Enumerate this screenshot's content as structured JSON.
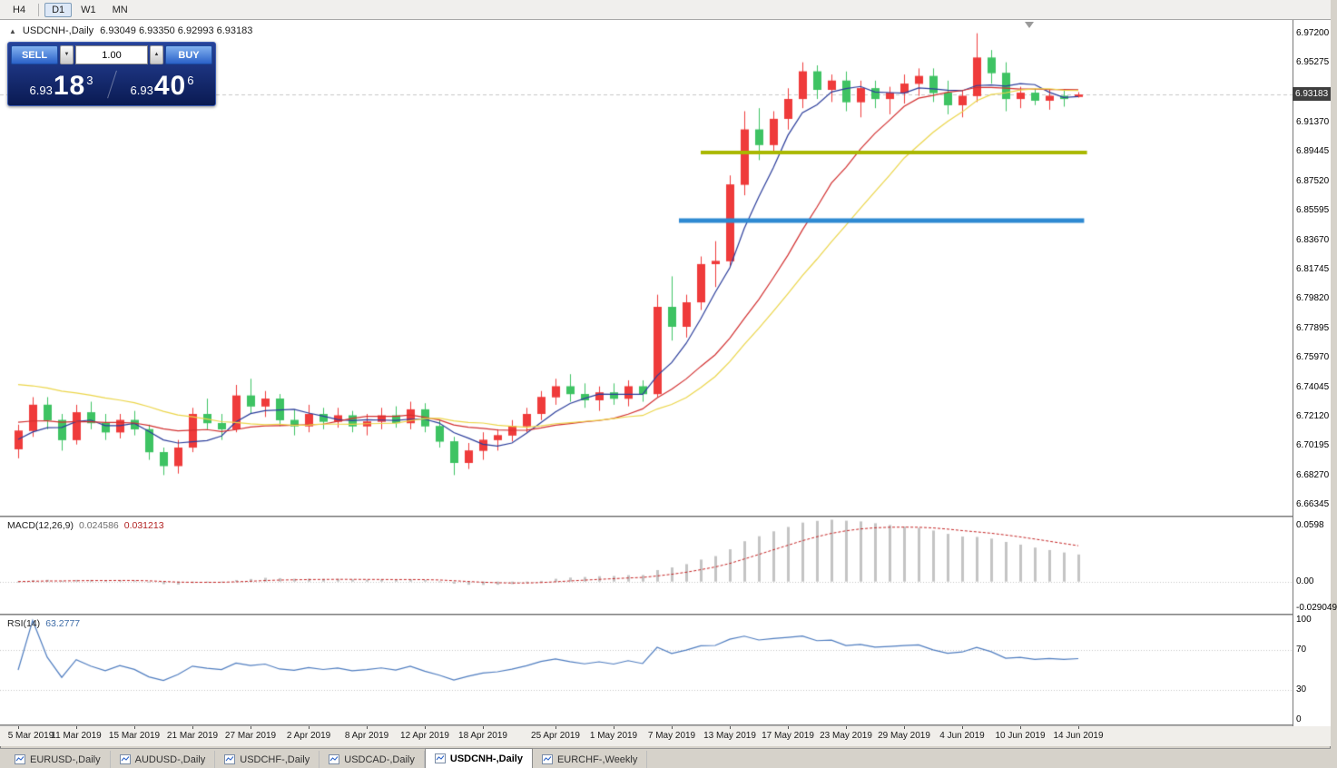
{
  "timeframe_toolbar": {
    "buttons": [
      "H4",
      "D1",
      "W1",
      "MN"
    ],
    "active": "D1"
  },
  "chart_header": {
    "collapse_icon": "▲",
    "title": "USDCNH-,Daily",
    "ohlc": "6.93049 6.93350 6.92993 6.93183"
  },
  "one_click_panel": {
    "sell_label": "SELL",
    "buy_label": "BUY",
    "volume": "1.00",
    "spin_down_icon": "▼",
    "spin_up_icon": "▲",
    "sell_price_main": "6.93",
    "sell_price_big": "18",
    "sell_price_sup": "3",
    "buy_price_main": "6.93",
    "buy_price_big": "40",
    "buy_price_sup": "6"
  },
  "price_axis": {
    "labels": [
      "6.97200",
      "6.95275",
      "6.91370",
      "6.89445",
      "6.87520",
      "6.85595",
      "6.83670",
      "6.81745",
      "6.79820",
      "6.77895",
      "6.75970",
      "6.74045",
      "6.72120",
      "6.70195",
      "6.68270",
      "6.66345"
    ],
    "current_price": "6.93183"
  },
  "macd_panel": {
    "label_name": "MACD(12,26,9)",
    "value_main": "0.024586",
    "value_signal": "0.031213",
    "axis_labels": [
      "0.0598",
      "0.00",
      "-0.029049"
    ]
  },
  "rsi_panel": {
    "label_name": "RSI(14)",
    "value": "63.2777",
    "axis_labels": [
      "100",
      "70",
      "30",
      "0"
    ]
  },
  "date_axis": {
    "labels": [
      [
        "5 Mar 2019",
        0
      ],
      [
        "11 Mar 2019",
        4
      ],
      [
        "15 Mar 2019",
        8
      ],
      [
        "21 Mar 2019",
        12
      ],
      [
        "27 Mar 2019",
        16
      ],
      [
        "2 Apr 2019",
        20
      ],
      [
        "8 Apr 2019",
        24
      ],
      [
        "12 Apr 2019",
        28
      ],
      [
        "18 Apr 2019",
        32
      ],
      [
        "25 Apr 2019",
        37
      ],
      [
        "1 May 2019",
        41
      ],
      [
        "7 May 2019",
        45
      ],
      [
        "13 May 2019",
        49
      ],
      [
        "17 May 2019",
        53
      ],
      [
        "23 May 2019",
        57
      ],
      [
        "29 May 2019",
        61
      ],
      [
        "4 Jun 2019",
        65
      ],
      [
        "10 Jun 2019",
        69
      ],
      [
        "14 Jun 2019",
        73
      ]
    ]
  },
  "tab_bar": {
    "tabs": [
      {
        "label": "EURUSD-,Daily",
        "active": false
      },
      {
        "label": "AUDUSD-,Daily",
        "active": false
      },
      {
        "label": "USDCHF-,Daily",
        "active": false
      },
      {
        "label": "USDCAD-,Daily",
        "active": false
      },
      {
        "label": "USDCNH-,Daily",
        "active": true
      },
      {
        "label": "EURCHF-,Weekly",
        "active": false
      }
    ]
  },
  "colors": {
    "bull": "#ef3b3b",
    "bear": "#3ec363",
    "ma_fast": "#2c3e9c",
    "ma_mid": "#d33030",
    "ma_slow": "#ecd64a",
    "macd_hist": "#c4c4c4",
    "macd_signal": "#c62626",
    "rsi_line": "#4f7dc0",
    "level_dotted": "#c6c6c6",
    "hline_olive": "#a9b800",
    "hline_blue": "#2f8ad2",
    "badge_bg": "#3f3f3f",
    "bid_line": "#c8c8c8"
  },
  "chart_data": {
    "type": "candlestick",
    "symbol": "USDCNH",
    "period": "Daily",
    "price_range": {
      "max": 6.9795,
      "min": 6.6565
    },
    "candles": [
      [
        6.7,
        6.716,
        6.694,
        6.712
      ],
      [
        6.712,
        6.734,
        6.708,
        6.729
      ],
      [
        6.729,
        6.734,
        6.713,
        6.719
      ],
      [
        6.719,
        6.723,
        6.699,
        6.706
      ],
      [
        6.706,
        6.729,
        6.703,
        6.724
      ],
      [
        6.724,
        6.731,
        6.713,
        6.717
      ],
      [
        6.717,
        6.723,
        6.706,
        6.711
      ],
      [
        6.711,
        6.723,
        6.707,
        6.719
      ],
      [
        6.719,
        6.725,
        6.709,
        6.713
      ],
      [
        6.713,
        6.716,
        6.693,
        6.698
      ],
      [
        6.698,
        6.701,
        6.683,
        6.689
      ],
      [
        6.689,
        6.706,
        6.684,
        6.701
      ],
      [
        6.701,
        6.727,
        6.698,
        6.723
      ],
      [
        6.723,
        6.733,
        6.713,
        6.717
      ],
      [
        6.717,
        6.723,
        6.706,
        6.713
      ],
      [
        6.713,
        6.742,
        6.711,
        6.735
      ],
      [
        6.735,
        6.746,
        6.723,
        6.728
      ],
      [
        6.728,
        6.738,
        6.721,
        6.733
      ],
      [
        6.733,
        6.736,
        6.715,
        6.719
      ],
      [
        6.719,
        6.726,
        6.709,
        6.715
      ],
      [
        6.715,
        6.729,
        6.711,
        6.723
      ],
      [
        6.723,
        6.727,
        6.713,
        6.718
      ],
      [
        6.718,
        6.727,
        6.714,
        6.722
      ],
      [
        6.722,
        6.725,
        6.711,
        6.715
      ],
      [
        6.715,
        6.723,
        6.709,
        6.718
      ],
      [
        6.718,
        6.727,
        6.713,
        6.722
      ],
      [
        6.722,
        6.728,
        6.714,
        6.717
      ],
      [
        6.717,
        6.731,
        6.713,
        6.726
      ],
      [
        6.726,
        6.73,
        6.711,
        6.715
      ],
      [
        6.715,
        6.719,
        6.701,
        6.705
      ],
      [
        6.705,
        6.708,
        6.683,
        6.691
      ],
      [
        6.691,
        6.704,
        6.687,
        6.699
      ],
      [
        6.699,
        6.711,
        6.693,
        6.706
      ],
      [
        6.706,
        6.713,
        6.699,
        6.709
      ],
      [
        6.709,
        6.719,
        6.705,
        6.715
      ],
      [
        6.715,
        6.727,
        6.711,
        6.723
      ],
      [
        6.723,
        6.738,
        6.719,
        6.734
      ],
      [
        6.734,
        6.746,
        6.729,
        6.741
      ],
      [
        6.741,
        6.749,
        6.731,
        6.736
      ],
      [
        6.736,
        6.743,
        6.727,
        6.732
      ],
      [
        6.732,
        6.741,
        6.725,
        6.737
      ],
      [
        6.737,
        6.743,
        6.729,
        6.733
      ],
      [
        6.733,
        6.745,
        6.728,
        6.741
      ],
      [
        6.741,
        6.745,
        6.731,
        6.736
      ],
      [
        6.736,
        6.801,
        6.734,
        6.793
      ],
      [
        6.793,
        6.813,
        6.771,
        6.78
      ],
      [
        6.78,
        6.801,
        6.773,
        6.796
      ],
      [
        6.796,
        6.826,
        6.791,
        6.821
      ],
      [
        6.821,
        6.836,
        6.806,
        6.823
      ],
      [
        6.823,
        6.879,
        6.819,
        6.873
      ],
      [
        6.873,
        6.921,
        6.866,
        6.909
      ],
      [
        6.909,
        6.923,
        6.889,
        6.899
      ],
      [
        6.899,
        6.921,
        6.894,
        6.916
      ],
      [
        6.916,
        6.936,
        6.909,
        6.929
      ],
      [
        6.929,
        6.953,
        6.923,
        6.947
      ],
      [
        6.947,
        6.951,
        6.929,
        6.935
      ],
      [
        6.935,
        6.945,
        6.927,
        6.941
      ],
      [
        6.941,
        6.947,
        6.921,
        6.927
      ],
      [
        6.927,
        6.941,
        6.917,
        6.936
      ],
      [
        6.936,
        6.941,
        6.923,
        6.929
      ],
      [
        6.929,
        6.937,
        6.919,
        6.933
      ],
      [
        6.933,
        6.945,
        6.926,
        6.939
      ],
      [
        6.939,
        6.949,
        6.931,
        6.944
      ],
      [
        6.944,
        6.949,
        6.927,
        6.933
      ],
      [
        6.933,
        6.941,
        6.919,
        6.925
      ],
      [
        6.925,
        6.935,
        6.917,
        6.931
      ],
      [
        6.931,
        6.972,
        6.927,
        6.956
      ],
      [
        6.956,
        6.961,
        6.939,
        6.946
      ],
      [
        6.946,
        6.953,
        6.921,
        6.929
      ],
      [
        6.929,
        6.937,
        6.923,
        6.933
      ],
      [
        6.933,
        6.936,
        6.925,
        6.928
      ],
      [
        6.928,
        6.935,
        6.922,
        6.931
      ],
      [
        6.931,
        6.935,
        6.924,
        6.929
      ],
      [
        6.93049,
        6.9335,
        6.92993,
        6.93183
      ]
    ],
    "moving_averages": [
      {
        "period": 5,
        "seed": 6.705,
        "color": "ma_fast"
      },
      {
        "period": 13,
        "seed": 6.718,
        "color": "ma_mid"
      },
      {
        "period": 18,
        "seed": 6.744,
        "color": "ma_slow"
      }
    ],
    "hlines": [
      {
        "price": 6.894,
        "from": 47,
        "to": 73.6,
        "width": 4,
        "color": "hline_olive"
      },
      {
        "price": 6.8495,
        "from": 45.5,
        "to": 73.4,
        "width": 5,
        "color": "hline_blue"
      }
    ],
    "macd": {
      "fast": 12,
      "slow": 26,
      "signal": 9,
      "norm_peak": 0.0598,
      "scale_max": 0.062,
      "scale_min": -0.031
    },
    "rsi": {
      "period": 14,
      "levels": [
        70,
        30
      ],
      "scale_max": 105,
      "scale_min": -5
    }
  }
}
